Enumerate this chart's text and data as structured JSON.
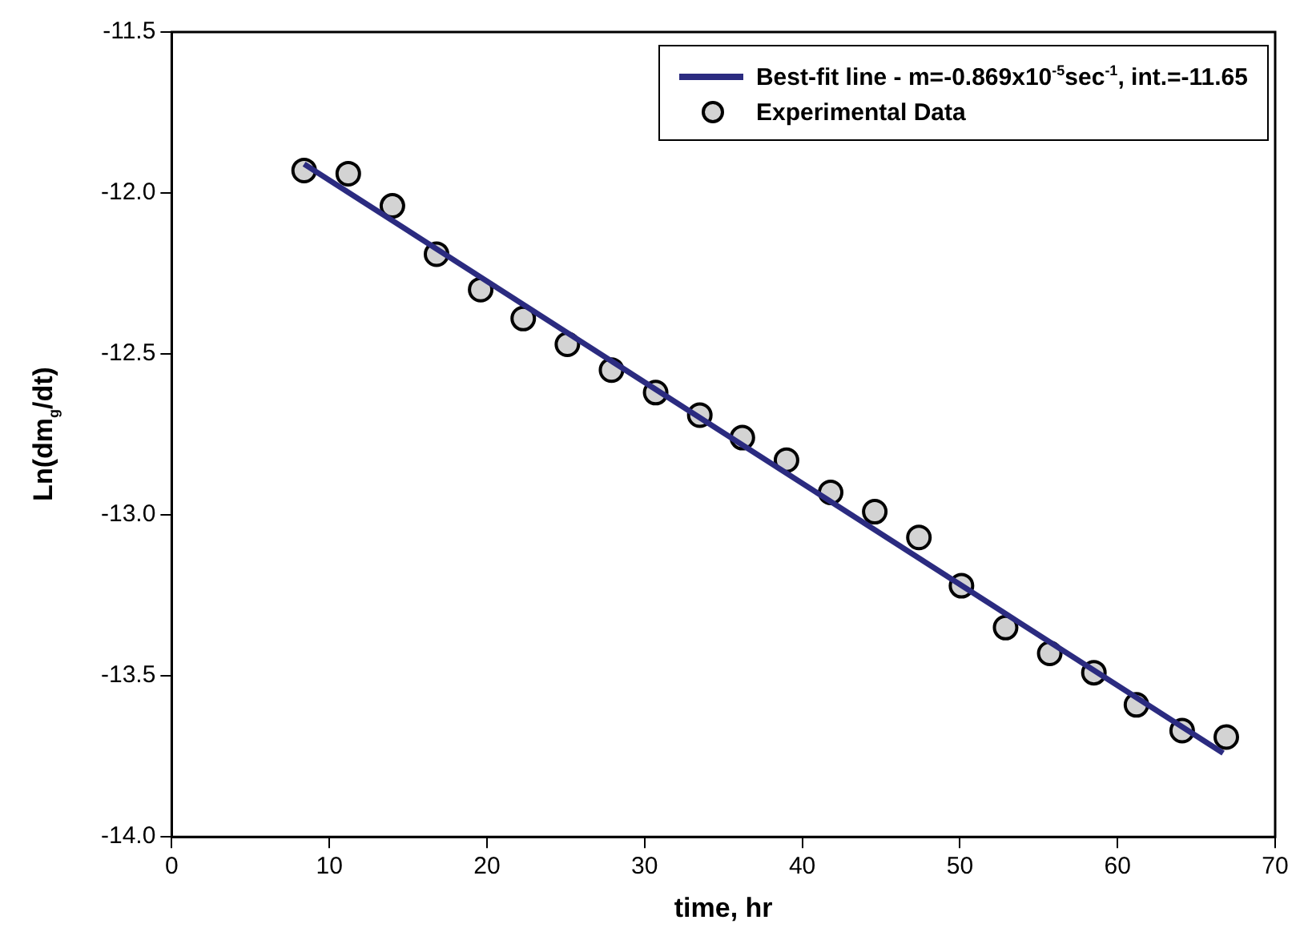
{
  "chart_data": {
    "type": "scatter",
    "xlabel": "time, hr",
    "ylabel": "Ln(dm$_{g}$/dt)",
    "xlim": [
      0,
      70
    ],
    "xticks": [
      0,
      10,
      20,
      30,
      40,
      50,
      60,
      70
    ],
    "ylim": [
      -14,
      -11.5
    ],
    "yticks": [
      {
        "value": -14,
        "label": "-14.0"
      },
      {
        "value": -13.5,
        "label": "-13.5"
      },
      {
        "value": -13,
        "label": "-13.0"
      },
      {
        "value": -12.5,
        "label": "-12.5"
      },
      {
        "value": -12,
        "label": "-12.0"
      },
      {
        "value": -11.5,
        "label": "-11.5"
      }
    ],
    "legend": "top right",
    "grid": false,
    "series": [
      {
        "name": "Best-fit line - m=-0.869x10$^{-5}$sec$^{-1}$, int.=-11.65",
        "type": "line",
        "color": "#2b2b80",
        "marker": "none",
        "line_style": "solid",
        "x": [
          8.4,
          66.7
        ],
        "values": [
          -11.91,
          -13.74
        ]
      },
      {
        "name": "Experimental Data",
        "type": "scatter",
        "color": "#d3d3d3",
        "marker": "circle",
        "x": [
          8.4,
          11.2,
          14.0,
          16.8,
          19.6,
          22.3,
          25.1,
          27.9,
          30.7,
          33.5,
          36.2,
          39.0,
          41.8,
          44.6,
          47.4,
          50.1,
          52.9,
          55.7,
          58.5,
          61.2,
          64.1,
          66.9
        ],
        "values": [
          -11.93,
          -11.94,
          -12.04,
          -12.19,
          -12.3,
          -12.39,
          -12.47,
          -12.55,
          -12.62,
          -12.69,
          -12.76,
          -12.83,
          -12.93,
          -12.99,
          -13.07,
          -13.22,
          -13.35,
          -13.43,
          -13.49,
          -13.59,
          -13.67,
          -13.69
        ]
      }
    ]
  }
}
